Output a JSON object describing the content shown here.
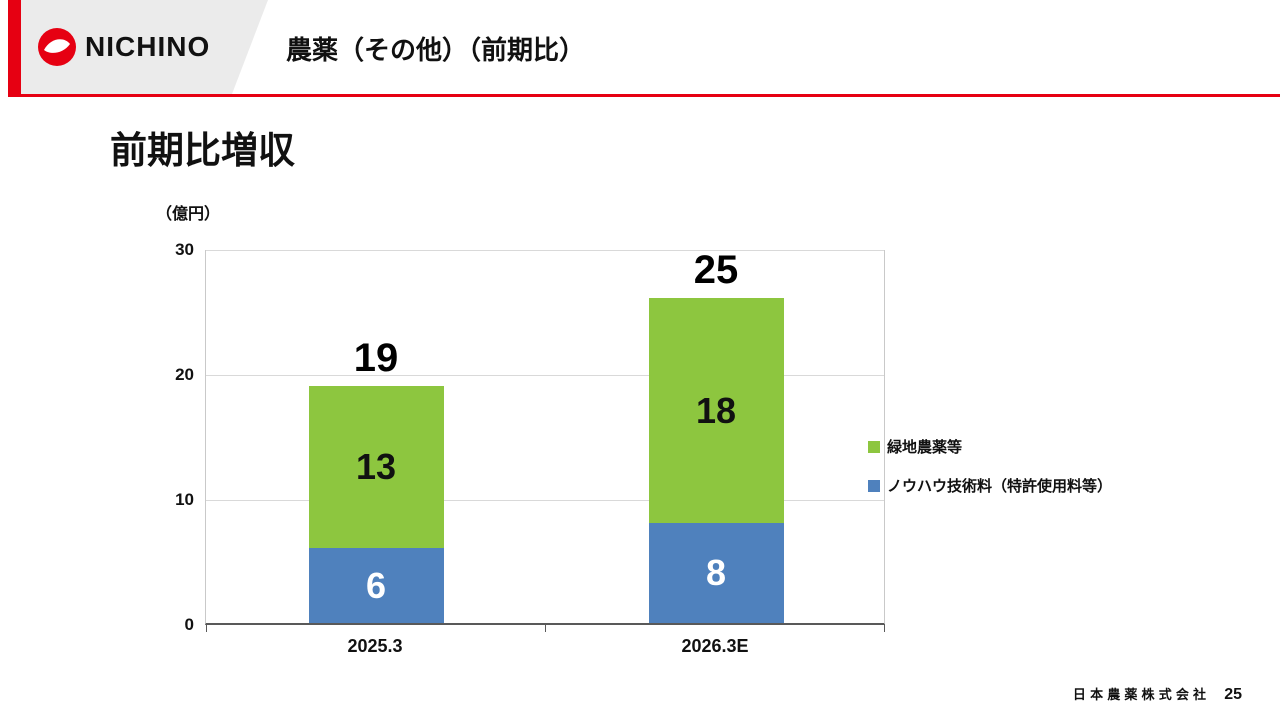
{
  "accent_color": "#E60012",
  "header": {
    "logo_text": "NICHINO",
    "logo_icon": "nichino-circle-logo",
    "title": "農薬（その他）（前期比）"
  },
  "slide": {
    "heading": "前期比増収"
  },
  "chart_data": {
    "type": "bar",
    "stacked": true,
    "title": "",
    "ylabel": "（億円）",
    "xlabel": "",
    "ylim": [
      0,
      30
    ],
    "yticks": [
      0,
      10,
      20,
      30
    ],
    "grid": true,
    "legend_position": "right",
    "categories": [
      "2025.3",
      "2026.3E"
    ],
    "series": [
      {
        "name": "ノウハウ技術料（特許使用料等）",
        "color": "#4F81BD",
        "values": [
          6,
          8
        ]
      },
      {
        "name": "緑地農薬等",
        "color": "#8DC63F",
        "values": [
          13,
          18
        ]
      }
    ],
    "totals": [
      19,
      25
    ]
  },
  "legend": {
    "items": [
      {
        "label": "緑地農薬等",
        "color": "#8DC63F"
      },
      {
        "label": "ノウハウ技術料（特許使用料等）",
        "color": "#4F81BD"
      }
    ]
  },
  "footer": {
    "company": "日本農薬株式会社",
    "page_number": "25"
  }
}
